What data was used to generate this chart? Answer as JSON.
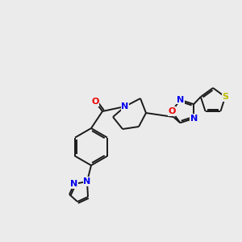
{
  "background_color": "#ebebeb",
  "bond_color": "#1a1a1a",
  "atom_colors": {
    "N": "#0000ee",
    "O": "#ee0000",
    "S": "#bbbb00",
    "C": "#1a1a1a"
  },
  "figsize": [
    3.0,
    3.0
  ],
  "dpi": 100,
  "xlim": [
    0,
    300
  ],
  "ylim": [
    0,
    300
  ]
}
